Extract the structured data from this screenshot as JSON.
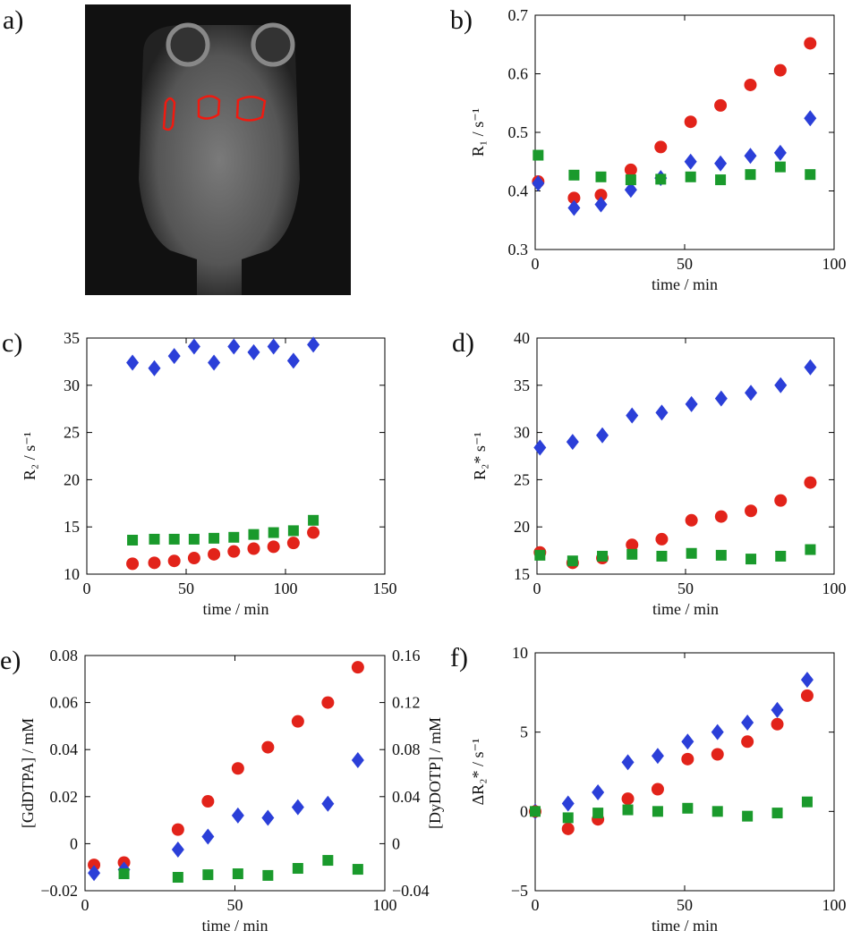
{
  "image": {
    "label": "a)"
  },
  "chart_data": [
    {
      "type": "scatter",
      "label": "b)",
      "xlabel": "time / min",
      "ylabel": "R₁ / s⁻¹",
      "xlim": [
        0,
        100
      ],
      "xticks": [
        0,
        50,
        100
      ],
      "ylim": [
        0.3,
        0.7
      ],
      "yticks": [
        0.3,
        0.4,
        0.5,
        0.6,
        0.7
      ],
      "series": [
        {
          "color": "#e2231a",
          "marker": "circle",
          "x": [
            1,
            13,
            22,
            32,
            42,
            52,
            62,
            72,
            82,
            92
          ],
          "values": [
            0.416,
            0.388,
            0.393,
            0.436,
            0.475,
            0.518,
            0.546,
            0.581,
            0.606,
            0.652
          ]
        },
        {
          "color": "#2b3fd8",
          "marker": "diamond",
          "x": [
            1,
            13,
            22,
            32,
            42,
            52,
            62,
            72,
            82,
            92
          ],
          "values": [
            0.413,
            0.371,
            0.377,
            0.402,
            0.422,
            0.45,
            0.447,
            0.46,
            0.465,
            0.524
          ]
        },
        {
          "color": "#1a9a2c",
          "marker": "square",
          "x": [
            1,
            13,
            22,
            32,
            42,
            52,
            62,
            72,
            82,
            92
          ],
          "values": [
            0.461,
            0.427,
            0.424,
            0.419,
            0.42,
            0.424,
            0.419,
            0.428,
            0.441,
            0.428
          ]
        }
      ]
    },
    {
      "type": "scatter",
      "label": "c)",
      "xlabel": "time / min",
      "ylabel": "R₂ / s⁻¹",
      "xlim": [
        0,
        150
      ],
      "xticks": [
        0,
        50,
        100,
        150
      ],
      "ylim": [
        10,
        35
      ],
      "yticks": [
        10,
        15,
        20,
        25,
        30,
        35
      ],
      "series": [
        {
          "color": "#2b3fd8",
          "marker": "diamond",
          "x": [
            23,
            34,
            44,
            54,
            64,
            74,
            84,
            94,
            104,
            114
          ],
          "values": [
            32.4,
            31.8,
            33.1,
            34.1,
            32.4,
            34.1,
            33.5,
            34.1,
            32.6,
            34.3
          ]
        },
        {
          "color": "#1a9a2c",
          "marker": "square",
          "x": [
            23,
            34,
            44,
            54,
            64,
            74,
            84,
            94,
            104,
            114
          ],
          "values": [
            13.6,
            13.7,
            13.7,
            13.7,
            13.8,
            13.9,
            14.2,
            14.4,
            14.6,
            15.7
          ]
        },
        {
          "color": "#e2231a",
          "marker": "circle",
          "x": [
            23,
            34,
            44,
            54,
            64,
            74,
            84,
            94,
            104,
            114
          ],
          "values": [
            11.1,
            11.2,
            11.4,
            11.7,
            12.1,
            12.4,
            12.7,
            12.9,
            13.3,
            14.4
          ]
        }
      ]
    },
    {
      "type": "scatter",
      "label": "d)",
      "xlabel": "time / min",
      "ylabel": "R₂* s⁻¹",
      "xlim": [
        0,
        100
      ],
      "xticks": [
        0,
        50,
        100
      ],
      "ylim": [
        15,
        40
      ],
      "yticks": [
        15,
        20,
        25,
        30,
        35,
        40
      ],
      "series": [
        {
          "color": "#2b3fd8",
          "marker": "diamond",
          "x": [
            1,
            12,
            22,
            32,
            42,
            52,
            62,
            72,
            82,
            92
          ],
          "values": [
            28.4,
            29,
            29.7,
            31.8,
            32.1,
            33,
            33.6,
            34.2,
            35,
            36.9
          ]
        },
        {
          "color": "#e2231a",
          "marker": "circle",
          "x": [
            1,
            12,
            22,
            32,
            42,
            52,
            62,
            72,
            82,
            92
          ],
          "values": [
            17.3,
            16.2,
            16.7,
            18.1,
            18.7,
            20.7,
            21.1,
            21.7,
            22.8,
            24.7
          ]
        },
        {
          "color": "#1a9a2c",
          "marker": "square",
          "x": [
            1,
            12,
            22,
            32,
            42,
            52,
            62,
            72,
            82,
            92
          ],
          "values": [
            17,
            16.4,
            16.9,
            17.1,
            16.9,
            17.2,
            17,
            16.6,
            16.9,
            17.6
          ]
        }
      ]
    },
    {
      "type": "scatter",
      "label": "e)",
      "xlabel": "time / min",
      "ylabel": "[GdDTPA] / mM",
      "y2label": "[DyDOTP] / mM",
      "xlim": [
        0,
        100
      ],
      "xticks": [
        0,
        50,
        100
      ],
      "ylim": [
        -0.02,
        0.08
      ],
      "yticks": [
        {
          "value": -0.02,
          "label": "−0.02"
        },
        0,
        0.02,
        0.04,
        0.06,
        0.08
      ],
      "y2lim": [
        -0.04,
        0.16
      ],
      "y2ticks": [
        {
          "value": -0.04,
          "label": "−0.04"
        },
        0,
        0.04,
        0.08,
        0.12,
        0.16
      ],
      "series": [
        {
          "color": "#e2231a",
          "marker": "circle",
          "x": [
            3,
            13,
            31,
            41,
            51,
            61,
            71,
            81,
            91
          ],
          "values": [
            -0.009,
            -0.008,
            0.006,
            0.018,
            0.032,
            0.041,
            0.052,
            0.06,
            0.075
          ]
        },
        {
          "color": "#2b3fd8",
          "marker": "diamond",
          "axis": "y2",
          "x": [
            3,
            13,
            31,
            41,
            51,
            61,
            71,
            81,
            91
          ],
          "values": [
            -0.025,
            -0.022,
            -0.005,
            0.006,
            0.024,
            0.022,
            0.031,
            0.034,
            0.071
          ]
        },
        {
          "color": "#1a9a2c",
          "marker": "square",
          "x": [
            13,
            31,
            41,
            51,
            61,
            71,
            81,
            91
          ],
          "values": [
            -0.0128,
            -0.0143,
            -0.0132,
            -0.0128,
            -0.0135,
            -0.0105,
            -0.0071,
            -0.0109
          ]
        }
      ]
    },
    {
      "type": "scatter",
      "label": "f)",
      "xlabel": "time / min",
      "ylabel": "ΔR₂* / s⁻¹",
      "xlim": [
        0,
        100
      ],
      "xticks": [
        0,
        50,
        100
      ],
      "ylim": [
        -5,
        10
      ],
      "yticks": [
        {
          "value": -5,
          "label": "−5"
        },
        0,
        5,
        10
      ],
      "series": [
        {
          "color": "#2b3fd8",
          "marker": "diamond",
          "x": [
            0,
            11,
            21,
            31,
            41,
            51,
            61,
            71,
            81,
            91
          ],
          "values": [
            0,
            0.5,
            1.2,
            3.1,
            3.5,
            4.4,
            5,
            5.6,
            6.4,
            8.3
          ]
        },
        {
          "color": "#e2231a",
          "marker": "circle",
          "x": [
            0,
            11,
            21,
            31,
            41,
            51,
            61,
            71,
            81,
            91
          ],
          "values": [
            0,
            -1.1,
            -0.5,
            0.8,
            1.4,
            3.3,
            3.6,
            4.4,
            5.5,
            7.3
          ]
        },
        {
          "color": "#1a9a2c",
          "marker": "square",
          "x": [
            0,
            11,
            21,
            31,
            41,
            51,
            61,
            71,
            81,
            91
          ],
          "values": [
            0,
            -0.4,
            -0.1,
            0.1,
            0,
            0.2,
            0,
            -0.3,
            -0.1,
            0.6
          ]
        }
      ]
    }
  ]
}
